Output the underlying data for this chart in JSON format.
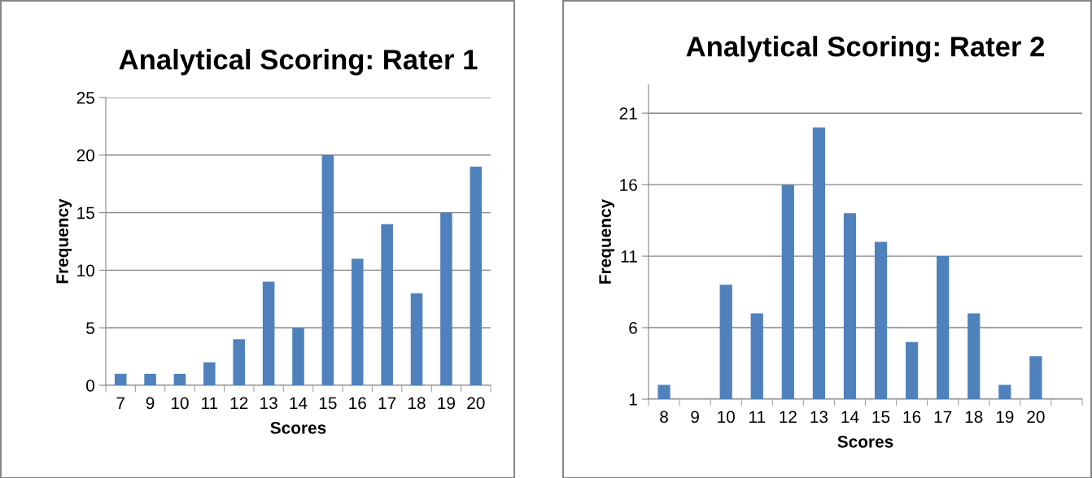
{
  "chart_data": [
    {
      "type": "bar",
      "title": "Analytical Scoring: Rater 1",
      "xlabel": "Scores",
      "ylabel": "Frequency",
      "categories": [
        "7",
        "9",
        "10",
        "11",
        "12",
        "13",
        "14",
        "15",
        "16",
        "17",
        "18",
        "19",
        "20"
      ],
      "values": [
        1,
        1,
        1,
        2,
        4,
        9,
        5,
        20,
        11,
        14,
        8,
        15,
        19
      ],
      "color": "#4f81bd",
      "ylim": [
        0,
        25
      ],
      "yticks": [
        0,
        5,
        10,
        15,
        20,
        25
      ],
      "grid": "y",
      "legend": false
    },
    {
      "type": "bar",
      "title": "Analytical Scoring: Rater 2",
      "xlabel": "Scores",
      "ylabel": "Frequency",
      "categories": [
        "8",
        "9",
        "10",
        "11",
        "12",
        "13",
        "14",
        "15",
        "16",
        "17",
        "18",
        "19",
        "20",
        null
      ],
      "values": [
        2,
        null,
        9,
        7,
        16,
        20,
        14,
        12,
        5,
        11,
        7,
        2,
        4,
        null
      ],
      "color": "#4f81bd",
      "ylim": [
        1,
        23
      ],
      "yticks": [
        1,
        6,
        11,
        16,
        21
      ],
      "grid": "y",
      "legend": false
    }
  ]
}
